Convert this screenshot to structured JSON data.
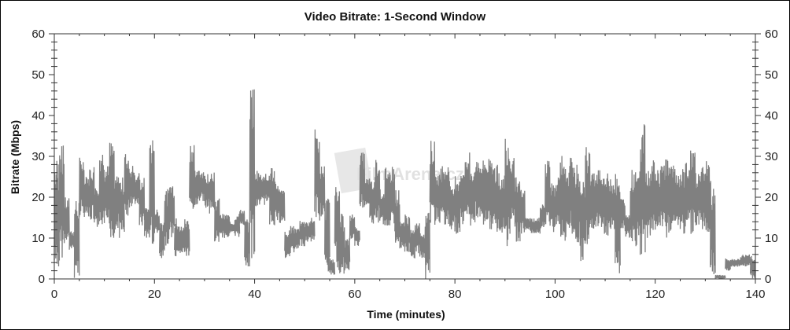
{
  "chart_data": {
    "type": "line",
    "title": "Video Bitrate: 1-Second Window",
    "xlabel": "Time (minutes)",
    "ylabel": "Bitrate (Mbps)",
    "xlim": [
      0,
      140
    ],
    "ylim": [
      0,
      60
    ],
    "x_ticks": [
      0,
      20,
      40,
      60,
      80,
      100,
      120,
      140
    ],
    "y_ticks": [
      0,
      10,
      20,
      30,
      40,
      50,
      60
    ],
    "x_minor_step": 5,
    "y_minor_step": 2,
    "right_axis": true,
    "grid": false,
    "line_color": "#808080",
    "series_note_per_minute": "low/high range per minute",
    "minute_low": [
      0,
      5,
      8,
      7,
      0,
      15,
      15,
      14,
      12,
      13,
      13,
      10,
      12,
      10,
      15,
      17,
      18,
      13,
      10,
      8,
      11,
      4,
      8,
      10,
      4,
      6,
      5,
      16,
      18,
      19,
      17,
      16,
      9,
      10,
      10,
      11,
      10,
      13,
      3,
      4,
      17,
      18,
      19,
      13,
      14,
      13,
      5,
      6,
      7,
      8,
      9,
      9,
      14,
      15,
      1,
      1,
      2,
      1,
      2,
      9,
      8,
      17,
      18,
      13,
      13,
      13,
      13,
      12,
      8,
      7,
      6,
      5,
      6,
      5,
      0,
      13,
      14,
      13,
      12,
      12,
      11,
      13,
      15,
      13,
      15,
      13,
      12,
      11,
      10,
      11,
      8,
      12,
      9,
      11,
      12,
      11,
      11,
      12,
      13,
      11,
      13,
      10,
      9,
      11,
      8,
      4,
      8,
      12,
      12,
      11,
      10,
      11,
      0,
      12,
      10,
      7,
      8,
      5,
      10,
      10,
      12,
      12,
      10,
      12,
      13,
      11,
      12,
      11,
      13,
      12,
      10,
      0,
      0,
      0,
      2,
      3,
      3,
      3,
      3,
      0
    ],
    "minute_high": [
      30,
      33,
      20,
      12,
      20,
      30,
      25,
      28,
      24,
      32,
      28,
      34,
      26,
      25,
      31,
      28,
      26,
      25,
      18,
      36,
      17,
      15,
      22,
      24,
      15,
      13,
      15,
      34,
      27,
      27,
      26,
      27,
      20,
      16,
      16,
      14,
      16,
      17,
      15,
      49,
      27,
      26,
      26,
      28,
      24,
      22,
      12,
      13,
      13,
      15,
      14,
      15,
      37,
      28,
      20,
      5,
      26,
      16,
      10,
      16,
      13,
      31,
      25,
      24,
      30,
      22,
      28,
      28,
      22,
      14,
      16,
      12,
      14,
      12,
      18,
      34,
      26,
      28,
      29,
      24,
      26,
      28,
      31,
      28,
      30,
      29,
      30,
      29,
      28,
      26,
      36,
      30,
      26,
      22,
      15,
      15,
      15,
      19,
      30,
      24,
      25,
      31,
      28,
      30,
      28,
      26,
      33,
      26,
      28,
      26,
      26,
      25,
      26,
      20,
      16,
      27,
      28,
      38,
      28,
      30,
      27,
      29,
      30,
      28,
      26,
      27,
      29,
      32,
      26,
      28,
      29,
      24,
      1,
      1,
      5,
      5,
      5,
      6,
      6,
      6
    ]
  },
  "watermark": {
    "logo_text": "FilmArena.cz"
  }
}
